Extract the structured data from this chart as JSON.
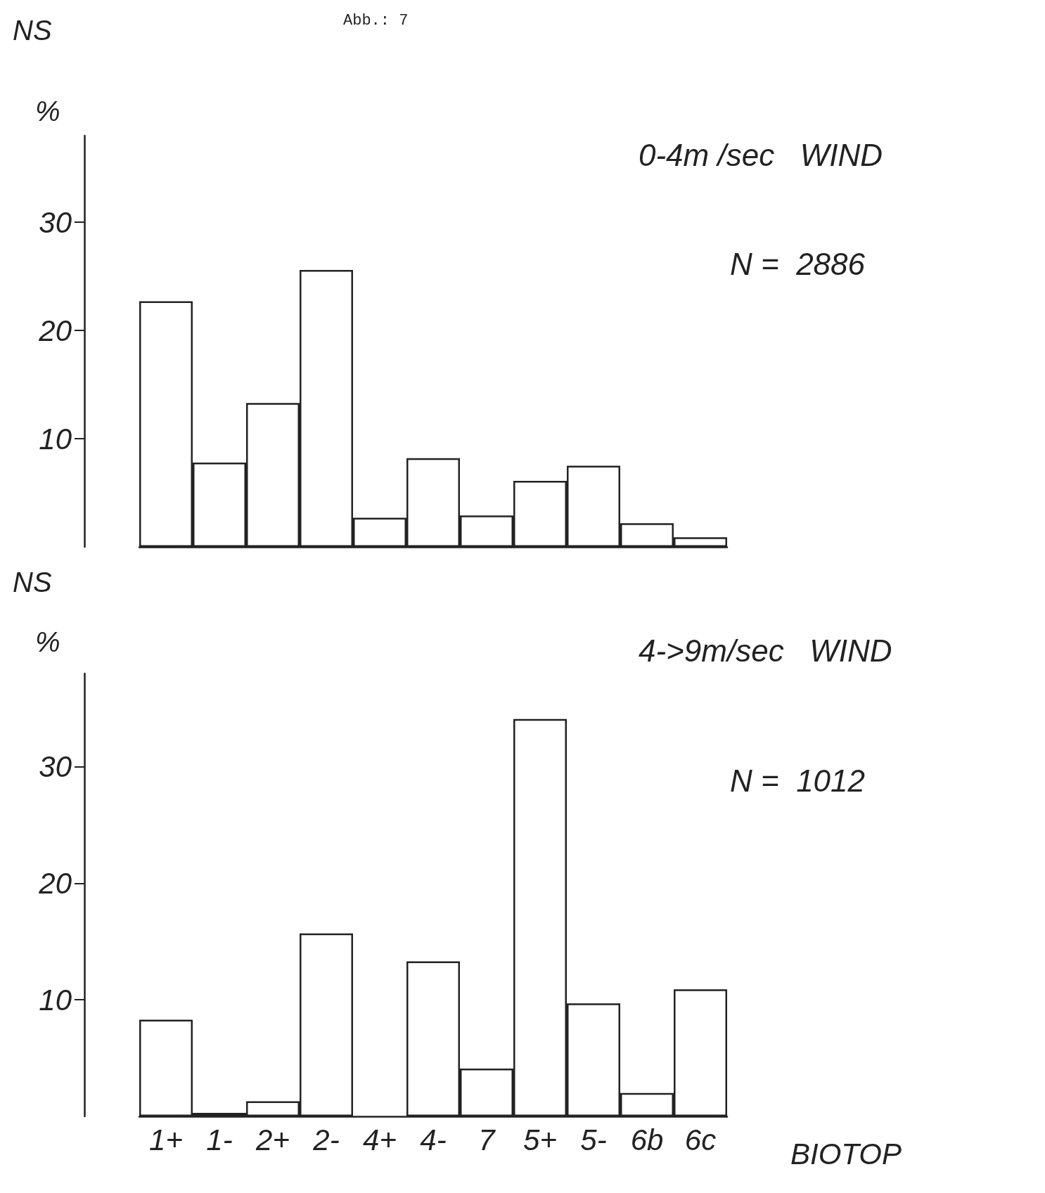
{
  "chart_data": [
    {
      "type": "bar",
      "title": "NS",
      "ylabel": "%",
      "annotations": [
        "Abb.: 7",
        "0-4m /sec   WIND",
        "N =  2886"
      ],
      "categories": [
        null,
        null,
        null,
        null,
        null,
        null,
        null,
        null,
        null,
        null,
        null
      ],
      "values": [
        22.7,
        7.8,
        13.3,
        25.6,
        2.7,
        8.2,
        2.9,
        6.1,
        7.5,
        2.2,
        0.9
      ],
      "color": "#222222",
      "ylim": [
        0,
        38
      ],
      "yticks": [
        10,
        20,
        30
      ],
      "grid": false,
      "tick_labels": "y"
    },
    {
      "type": "bar",
      "title": "NS",
      "ylabel": "%",
      "xlabel": "BIOTOP",
      "annotations": [
        "4->9m/sec   WIND",
        "N =  1012"
      ],
      "categories": [
        "1+",
        "1-",
        "2+",
        "2-",
        "4+",
        "4-",
        "7",
        "5+",
        "5-",
        "6b",
        "6c"
      ],
      "values": [
        8.3,
        0.3,
        1.3,
        15.7,
        null,
        13.3,
        4.1,
        34.1,
        9.7,
        2.0,
        10.9
      ],
      "color": "#222222",
      "ylim": [
        0,
        38
      ],
      "yticks": [
        10,
        20,
        30
      ],
      "grid": false
    }
  ]
}
